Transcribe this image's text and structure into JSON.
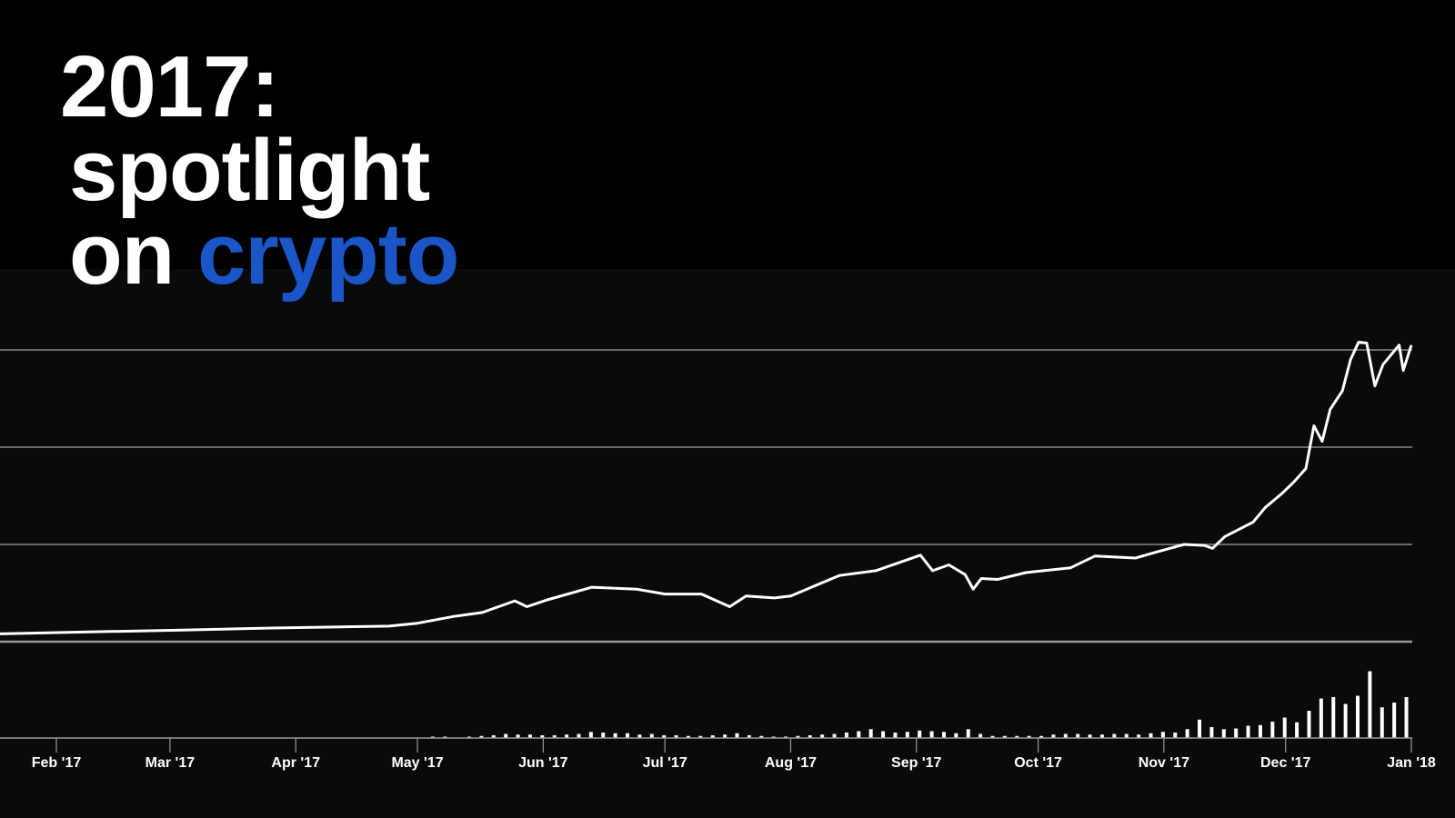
{
  "headline": {
    "line1": "2017:",
    "line2": "spotlight",
    "line3_prefix": "on",
    "line3_accent": "crypto"
  },
  "colors": {
    "background": "#000000",
    "text": "#ffffff",
    "accent": "#1a56c8",
    "line": "#ffffff",
    "grid": "#8a8a8a"
  },
  "chart_data": {
    "type": "line",
    "title": "",
    "xlabel": "",
    "ylabel": "",
    "grid": true,
    "y_gridlines": [
      1,
      2,
      3
    ],
    "ylim": [
      0,
      3.2
    ],
    "xlim": [
      "2017-01-18",
      "2018-01-02"
    ],
    "x_ticks": [
      {
        "date": "2017-02-01",
        "label": "Feb '17"
      },
      {
        "date": "2017-03-01",
        "label": "Mar '17"
      },
      {
        "date": "2017-04-01",
        "label": "Apr '17"
      },
      {
        "date": "2017-05-01",
        "label": "May '17"
      },
      {
        "date": "2017-06-01",
        "label": "Jun '17"
      },
      {
        "date": "2017-07-01",
        "label": "Jul '17"
      },
      {
        "date": "2017-08-01",
        "label": "Aug '17"
      },
      {
        "date": "2017-09-01",
        "label": "Sep '17"
      },
      {
        "date": "2017-10-01",
        "label": "Oct '17"
      },
      {
        "date": "2017-11-01",
        "label": "Nov '17"
      },
      {
        "date": "2017-12-01",
        "label": "Dec '17"
      },
      {
        "date": "2018-01-01",
        "label": "Jan '18"
      }
    ],
    "price": [
      [
        "2017-01-18",
        0.08
      ],
      [
        "2017-02-09",
        0.1
      ],
      [
        "2017-03-04",
        0.12
      ],
      [
        "2017-03-26",
        0.14
      ],
      [
        "2017-04-24",
        0.16
      ],
      [
        "2017-05-01",
        0.19
      ],
      [
        "2017-05-10",
        0.26
      ],
      [
        "2017-05-17",
        0.3
      ],
      [
        "2017-05-25",
        0.42
      ],
      [
        "2017-05-28",
        0.36
      ],
      [
        "2017-06-02",
        0.43
      ],
      [
        "2017-06-13",
        0.56
      ],
      [
        "2017-06-24",
        0.54
      ],
      [
        "2017-07-01",
        0.49
      ],
      [
        "2017-07-10",
        0.49
      ],
      [
        "2017-07-17",
        0.36
      ],
      [
        "2017-07-21",
        0.47
      ],
      [
        "2017-07-28",
        0.45
      ],
      [
        "2017-08-01",
        0.47
      ],
      [
        "2017-08-13",
        0.68
      ],
      [
        "2017-08-22",
        0.73
      ],
      [
        "2017-09-02",
        0.89
      ],
      [
        "2017-09-05",
        0.73
      ],
      [
        "2017-09-09",
        0.79
      ],
      [
        "2017-09-13",
        0.69
      ],
      [
        "2017-09-15",
        0.54
      ],
      [
        "2017-09-17",
        0.65
      ],
      [
        "2017-09-21",
        0.64
      ],
      [
        "2017-09-28",
        0.71
      ],
      [
        "2017-10-09",
        0.76
      ],
      [
        "2017-10-15",
        0.88
      ],
      [
        "2017-10-25",
        0.86
      ],
      [
        "2017-10-30",
        0.92
      ],
      [
        "2017-11-06",
        1.0
      ],
      [
        "2017-11-11",
        0.99
      ],
      [
        "2017-11-13",
        0.96
      ],
      [
        "2017-11-16",
        1.08
      ],
      [
        "2017-11-23",
        1.23
      ],
      [
        "2017-11-26",
        1.38
      ],
      [
        "2017-11-30",
        1.52
      ],
      [
        "2017-12-03",
        1.64
      ],
      [
        "2017-12-06",
        1.78
      ],
      [
        "2017-12-08",
        2.22
      ],
      [
        "2017-12-10",
        2.06
      ],
      [
        "2017-12-12",
        2.39
      ],
      [
        "2017-12-15",
        2.58
      ],
      [
        "2017-12-17",
        2.9
      ],
      [
        "2017-12-19",
        3.08
      ],
      [
        "2017-12-21",
        3.07
      ],
      [
        "2017-12-23",
        2.63
      ],
      [
        "2017-12-25",
        2.85
      ],
      [
        "2017-12-29",
        3.05
      ],
      [
        "2017-12-30",
        2.79
      ],
      [
        "2018-01-01",
        3.05
      ]
    ],
    "volume": {
      "type": "bar",
      "start": "2017-05-05",
      "step_days": 3,
      "ylim": [
        0,
        10
      ],
      "values": [
        0.2,
        0.2,
        0,
        0.2,
        0.3,
        0.4,
        0.6,
        0.5,
        0.5,
        0.4,
        0.4,
        0.5,
        0.6,
        0.9,
        0.8,
        0.7,
        0.7,
        0.5,
        0.6,
        0.4,
        0.4,
        0.3,
        0.3,
        0.4,
        0.5,
        0.7,
        0.4,
        0.3,
        0.2,
        0.2,
        0.3,
        0.4,
        0.5,
        0.6,
        0.8,
        1.0,
        1.3,
        1.0,
        0.8,
        0.9,
        1.1,
        1.0,
        0.9,
        0.7,
        1.3,
        0.6,
        0.3,
        0.3,
        0.3,
        0.3,
        0.3,
        0.5,
        0.6,
        0.6,
        0.5,
        0.5,
        0.6,
        0.6,
        0.5,
        0.7,
        0.9,
        0.8,
        1.3,
        2.7,
        1.6,
        1.3,
        1.4,
        1.8,
        1.9,
        2.4,
        3.0,
        2.3,
        4.0,
        5.8,
        6.0,
        5.0,
        6.2,
        9.8,
        4.5,
        5.2,
        6.0
      ]
    }
  }
}
